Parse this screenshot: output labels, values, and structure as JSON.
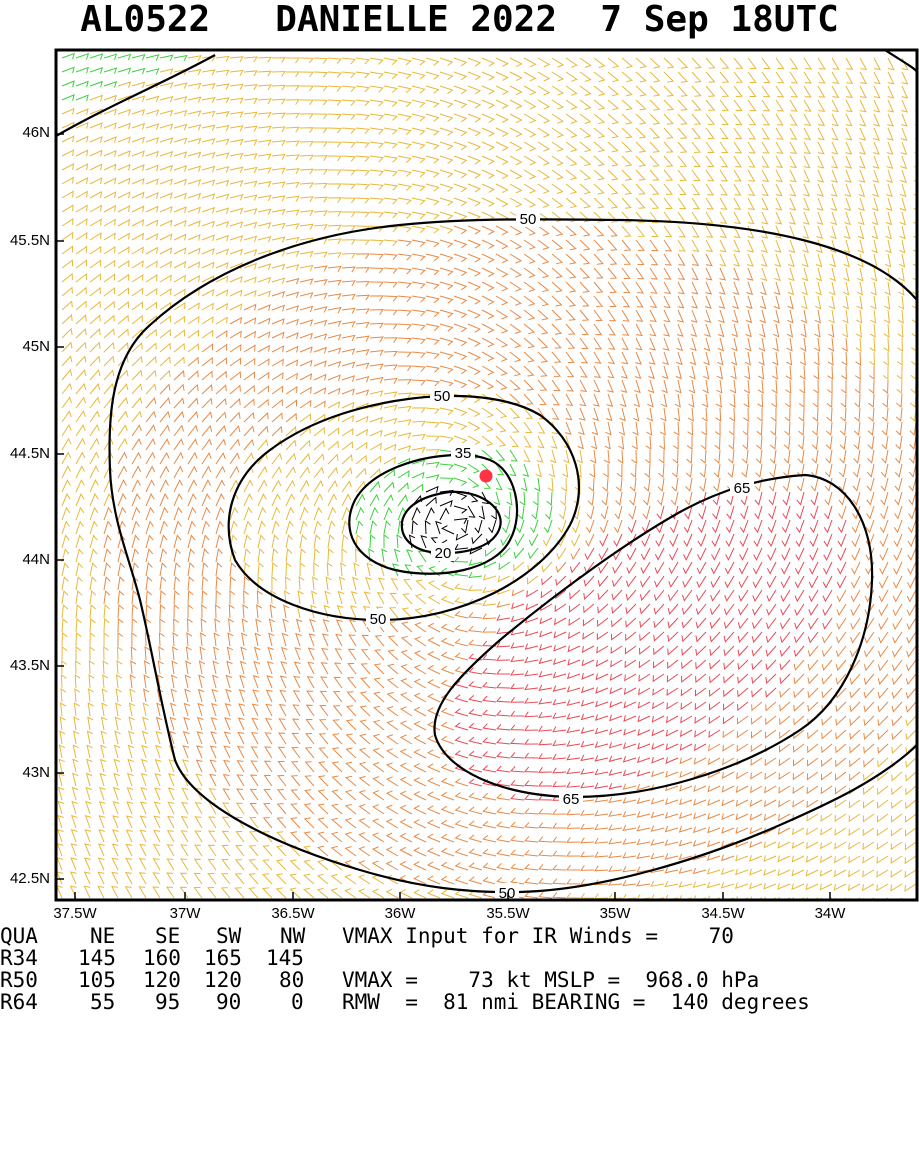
{
  "title": {
    "storm_id": "AL0522",
    "storm_name": "DANIELLE 2022",
    "datetime": "7 Sep 18UTC"
  },
  "map": {
    "lat_labels": [
      "46N",
      "45.5N",
      "45N",
      "44.5N",
      "44N",
      "43.5N",
      "43N",
      "42.5N"
    ],
    "lon_labels": [
      "37.5W",
      "37W",
      "36.5W",
      "36W",
      "35.5W",
      "35W",
      "34.5W",
      "34W"
    ],
    "contour_labels": [
      {
        "text": "50",
        "id": "outer-top"
      },
      {
        "text": "50",
        "id": "outer-bottom"
      },
      {
        "text": "50",
        "id": "inner-top"
      },
      {
        "text": "50",
        "id": "inner-bottom"
      },
      {
        "text": "35",
        "id": "core-top"
      },
      {
        "text": "20",
        "id": "core-bottom"
      },
      {
        "text": "65",
        "id": "max-top"
      },
      {
        "text": "65",
        "id": "max-bottom"
      }
    ],
    "center_marker": "storm-center",
    "colors": {
      "yellow": "#e8b83a",
      "orange": "#e88a45",
      "red": "#e84a55",
      "green": "#3ad13a",
      "black": "#000000",
      "center": "#ff3344"
    }
  },
  "table": {
    "header": {
      "label": "QUA",
      "ne": "NE",
      "se": "SE",
      "sw": "SW",
      "nw": "NW",
      "info": "VMAX Input for IR Winds =    70"
    },
    "r34": {
      "label": "R34",
      "ne": "145",
      "se": "160",
      "sw": "165",
      "nw": "145",
      "info": ""
    },
    "r50": {
      "label": "R50",
      "ne": "105",
      "se": "120",
      "sw": "120",
      "nw": "80",
      "info": "VMAX =    73 kt MSLP =  968.0 hPa"
    },
    "r64": {
      "label": "R64",
      "ne": "55",
      "se": "95",
      "sw": "90",
      "nw": "0",
      "info": "RMW  =  81 nmi BEARING =  140 degrees"
    }
  }
}
